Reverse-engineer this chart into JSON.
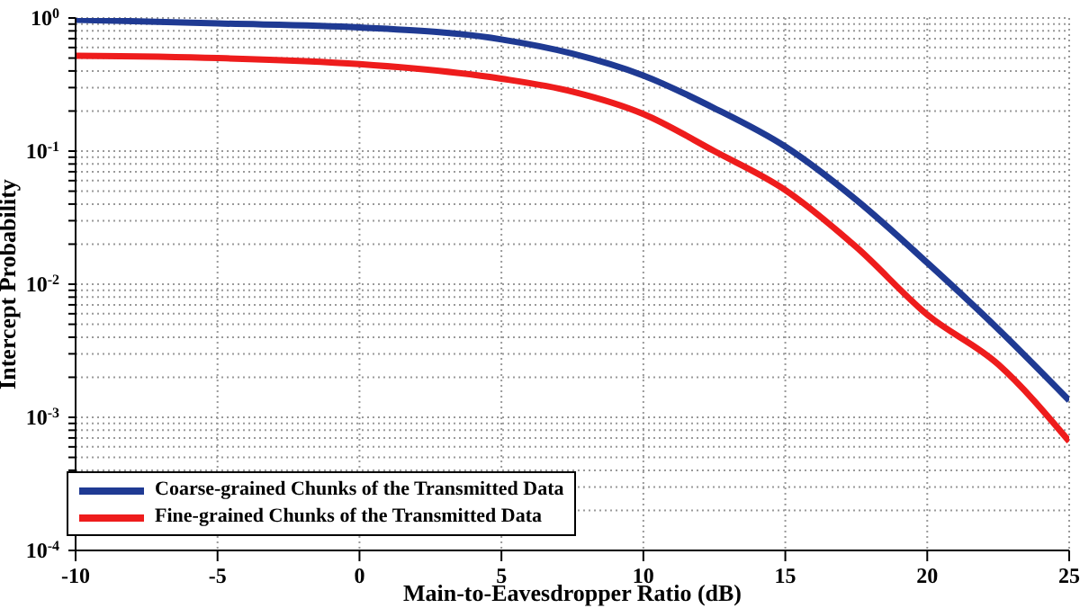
{
  "chart_data": {
    "type": "line",
    "xlabel": "Main-to-Eavesdropper Ratio (dB)",
    "ylabel": "Intercept Probability",
    "x": [
      -10,
      -5,
      0,
      5,
      7.5,
      10,
      12.5,
      15,
      17.5,
      20,
      22.5,
      25
    ],
    "series": [
      {
        "name": "Coarse-grained Chunks of the Transmitted Data",
        "color": "#1f3a93",
        "values": [
          0.97,
          0.91,
          0.85,
          0.69,
          0.54,
          0.37,
          0.21,
          0.108,
          0.043,
          0.0145,
          0.0046,
          0.00134
        ]
      },
      {
        "name": "Fine-grained Chunks of the Transmitted Data",
        "color": "#ee1c1c",
        "values": [
          0.52,
          0.5,
          0.45,
          0.35,
          0.28,
          0.19,
          0.1,
          0.051,
          0.019,
          0.0059,
          0.0025,
          0.00066
        ]
      }
    ],
    "xlim": [
      -10,
      25
    ],
    "xticks": [
      -10,
      -5,
      0,
      5,
      10,
      15,
      20,
      25
    ],
    "ylim": [
      0.0001,
      1
    ],
    "log": "y",
    "yticks": [
      {
        "value": 0.0001,
        "label": "10$^{-4}$"
      },
      {
        "value": 0.0002,
        "label": null
      },
      {
        "value": 0.0003,
        "label": null
      },
      {
        "value": 0.0004,
        "label": null
      },
      {
        "value": 0.0005,
        "label": null
      },
      {
        "value": 0.0006,
        "label": null
      },
      {
        "value": 0.0007,
        "label": null
      },
      {
        "value": 0.0008,
        "label": null
      },
      {
        "value": 0.0009,
        "label": null
      },
      {
        "value": 0.001,
        "label": "10$^{-3}$"
      },
      {
        "value": 0.002,
        "label": null
      },
      {
        "value": 0.003,
        "label": null
      },
      {
        "value": 0.004,
        "label": null
      },
      {
        "value": 0.005,
        "label": null
      },
      {
        "value": 0.006,
        "label": null
      },
      {
        "value": 0.007,
        "label": null
      },
      {
        "value": 0.008,
        "label": null
      },
      {
        "value": 0.009,
        "label": null
      },
      {
        "value": 0.01,
        "label": "10$^{-2}$"
      },
      {
        "value": 0.02,
        "label": null
      },
      {
        "value": 0.03,
        "label": null
      },
      {
        "value": 0.04,
        "label": null
      },
      {
        "value": 0.05,
        "label": null
      },
      {
        "value": 0.06,
        "label": null
      },
      {
        "value": 0.07,
        "label": null
      },
      {
        "value": 0.08,
        "label": null
      },
      {
        "value": 0.09,
        "label": null
      },
      {
        "value": 0.1,
        "label": "10$^{-1}$"
      },
      {
        "value": 0.2,
        "label": null
      },
      {
        "value": 0.3,
        "label": null
      },
      {
        "value": 0.4,
        "label": null
      },
      {
        "value": 0.5,
        "label": null
      },
      {
        "value": 0.6,
        "label": null
      },
      {
        "value": 0.7,
        "label": null
      },
      {
        "value": 0.8,
        "label": null
      },
      {
        "value": 0.9,
        "label": null
      },
      {
        "value": 1,
        "label": "10$^{0}$"
      }
    ],
    "grid": true,
    "legend": "bottom left",
    "marker": "none",
    "line_style": "solid"
  }
}
